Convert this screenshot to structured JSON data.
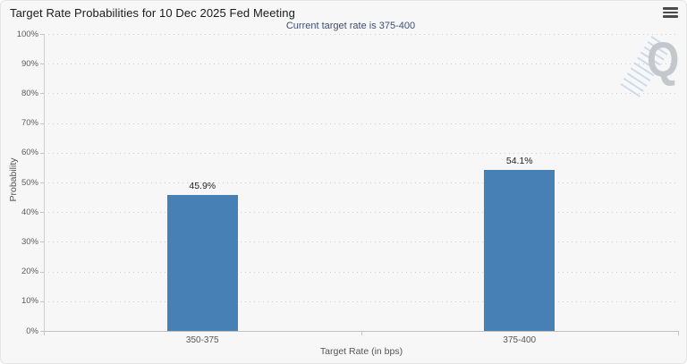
{
  "chart_data": {
    "type": "bar",
    "title": "Target Rate Probabilities for 10 Dec 2025 Fed Meeting",
    "subtitle": "Current target rate is 375-400",
    "categories": [
      "350-375",
      "375-400"
    ],
    "series": [
      {
        "name": "Probability",
        "values": [
          45.9,
          54.1
        ]
      }
    ],
    "data_labels": [
      "45.9%",
      "54.1%"
    ],
    "xlabel": "Target Rate (in bps)",
    "ylabel": "Probability",
    "ylim": [
      0,
      100
    ],
    "ytick_interval": 10,
    "ytick_labels": [
      "100%",
      "90%",
      "80%",
      "70%",
      "60%",
      "50%",
      "40%",
      "30%",
      "20%",
      "10%",
      "0%"
    ],
    "grid": "horizontal-dotted",
    "legend": "none",
    "bar_color": "#4680b4",
    "subtitle_color": "#3d4e73"
  },
  "toolbar": {
    "menu_icon": "hamburger-menu-icon"
  },
  "watermark": {
    "letter": "Q"
  }
}
